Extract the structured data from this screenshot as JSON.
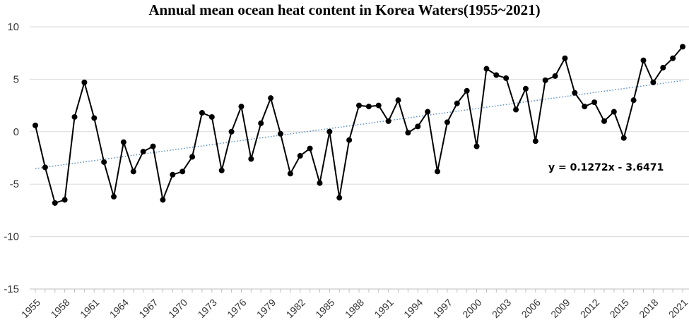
{
  "chart_data": {
    "type": "line",
    "title": "Annual mean ocean heat content in Korea Waters(1955~2021)",
    "xlabel": "",
    "ylabel": "",
    "ylim": [
      -15,
      10
    ],
    "yticks": [
      10,
      5,
      0,
      -5,
      -10,
      -15
    ],
    "x_tick_labels": [
      "1955",
      "1958",
      "1961",
      "1964",
      "1967",
      "1970",
      "1973",
      "1976",
      "1979",
      "1982",
      "1985",
      "1988",
      "1991",
      "1994",
      "1997",
      "2000",
      "2003",
      "2006",
      "2009",
      "2012",
      "2015",
      "2018",
      "2021"
    ],
    "grid": "horizontal",
    "series": [
      {
        "name": "Ocean heat content",
        "x": [
          1955,
          1956,
          1957,
          1958,
          1959,
          1960,
          1961,
          1962,
          1963,
          1964,
          1965,
          1966,
          1967,
          1968,
          1969,
          1970,
          1971,
          1972,
          1973,
          1974,
          1975,
          1976,
          1977,
          1978,
          1979,
          1980,
          1981,
          1982,
          1983,
          1984,
          1985,
          1986,
          1987,
          1988,
          1989,
          1990,
          1991,
          1992,
          1993,
          1994,
          1995,
          1996,
          1997,
          1998,
          1999,
          2000,
          2001,
          2002,
          2003,
          2004,
          2005,
          2006,
          2007,
          2008,
          2009,
          2010,
          2011,
          2012,
          2013,
          2014,
          2015,
          2016,
          2017,
          2018,
          2019,
          2020,
          2021
        ],
        "values": [
          0.6,
          -3.4,
          -6.8,
          -6.5,
          1.4,
          4.7,
          1.3,
          -2.9,
          -6.2,
          -1.0,
          -3.8,
          -1.9,
          -1.4,
          -6.5,
          -4.1,
          -3.8,
          -2.4,
          1.8,
          1.4,
          -3.7,
          0.0,
          2.4,
          -2.6,
          0.8,
          3.2,
          -0.2,
          -4.0,
          -2.3,
          -1.6,
          -4.9,
          0.0,
          -6.3,
          -0.8,
          2.5,
          2.4,
          2.5,
          1.0,
          3.0,
          -0.1,
          0.5,
          1.9,
          -3.8,
          0.9,
          2.7,
          3.9,
          -1.4,
          6.0,
          5.4,
          5.1,
          2.1,
          4.1,
          -0.9,
          4.9,
          5.3,
          7.0,
          3.7,
          2.4,
          2.8,
          1.0,
          1.9,
          -0.6,
          3.0,
          6.8,
          4.7,
          6.1,
          7.0,
          8.1
        ]
      }
    ],
    "trendline": {
      "equation": "y = 0.1272x - 3.6471",
      "slope": 0.1272,
      "intercept": -3.6471,
      "style": "dotted",
      "color": "#5b8fc7"
    },
    "colors": {
      "line": "#000000",
      "marker": "#000000",
      "grid": "#d9d9d9",
      "axis": "#bfbfbf"
    }
  }
}
